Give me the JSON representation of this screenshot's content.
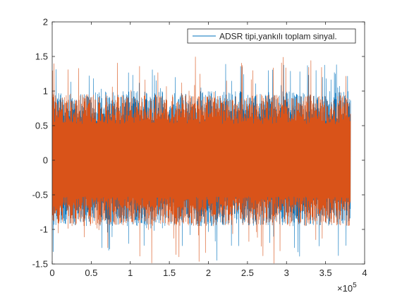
{
  "chart_data": {
    "type": "line",
    "title": "",
    "xlabel": "",
    "ylabel": "",
    "xlim": [
      0,
      400000
    ],
    "ylim": [
      -1.5,
      2
    ],
    "x_ticks": [
      0,
      50000,
      100000,
      150000,
      200000,
      250000,
      300000,
      350000,
      400000
    ],
    "x_tick_labels": [
      "0",
      "0.5",
      "1",
      "1.5",
      "2",
      "2.5",
      "3",
      "3.5",
      "4"
    ],
    "x_exponent_label": "×10",
    "x_exponent_power": "5",
    "y_ticks": [
      -1.5,
      -1,
      -0.5,
      0,
      0.5,
      1,
      1.5,
      2
    ],
    "y_tick_labels": [
      "-1.5",
      "-1",
      "-0.5",
      "0",
      "0.5",
      "1",
      "1.5",
      "2"
    ],
    "grid": false,
    "legend": {
      "position": "top-right",
      "entries": [
        "ADSR tipi,yankılı toplam sinyal."
      ]
    },
    "series": [
      {
        "name": "ADSR tipi,yankılı toplam sinyal.",
        "color": "#0072BD",
        "x_range": [
          0,
          382000
        ],
        "typical_envelope": [
          -0.95,
          1.0
        ],
        "peak_range": [
          -1.45,
          1.4
        ]
      },
      {
        "name": "",
        "color": "#D95319",
        "x_range": [
          0,
          382000
        ],
        "typical_envelope": [
          -0.95,
          0.95
        ],
        "peak_range": [
          -1.5,
          1.5
        ]
      }
    ]
  }
}
